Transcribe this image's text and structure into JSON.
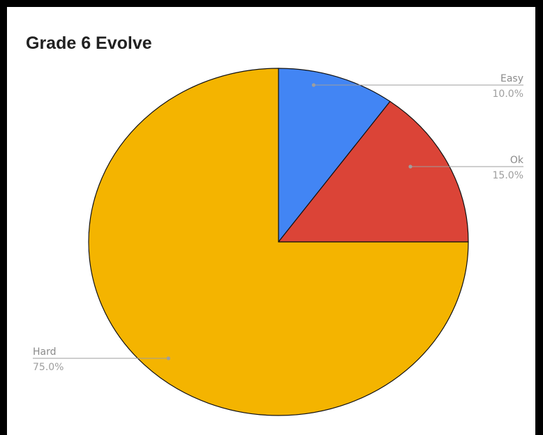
{
  "chart_data": {
    "type": "pie",
    "title": "Grade 6 Evolve",
    "start_angle_deg": 0,
    "direction": "clockwise",
    "slices": [
      {
        "label": "Easy",
        "value": 10.0,
        "display": "10.0%",
        "color": "#4285f4"
      },
      {
        "label": "Ok",
        "value": 15.0,
        "display": "15.0%",
        "color": "#db4437"
      },
      {
        "label": "Hard",
        "value": 75.0,
        "display": "75.0%",
        "color": "#f4b400"
      }
    ],
    "legend": "none",
    "labels": "leader-lines"
  }
}
